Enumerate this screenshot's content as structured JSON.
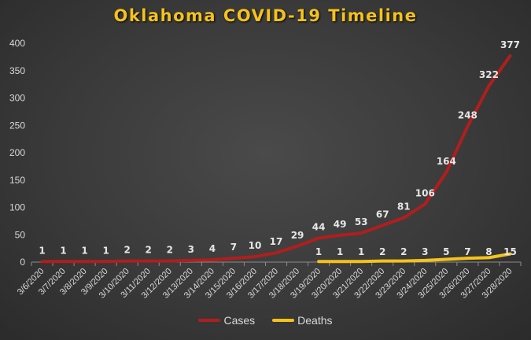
{
  "chart_data": {
    "type": "line",
    "title": "Oklahoma COVID-19 Timeline",
    "categories": [
      "3/6/2020",
      "3/7/2020",
      "3/8/2020",
      "3/9/2020",
      "3/10/2020",
      "3/11/2020",
      "3/12/2020",
      "3/13/2020",
      "3/14/2020",
      "3/15/2020",
      "3/16/2020",
      "3/17/2020",
      "3/18/2020",
      "3/19/2020",
      "3/20/2020",
      "3/21/2020",
      "3/22/2020",
      "3/23/2020",
      "3/24/2020",
      "3/25/2020",
      "3/26/2020",
      "3/27/2020",
      "3/28/2020"
    ],
    "series": [
      {
        "name": "Cases",
        "color": "#b01e1e",
        "values": [
          1,
          1,
          1,
          1,
          2,
          2,
          2,
          3,
          4,
          7,
          10,
          17,
          29,
          44,
          49,
          53,
          67,
          81,
          106,
          164,
          248,
          322,
          377
        ]
      },
      {
        "name": "Deaths",
        "color": "#f5c21b",
        "values": [
          null,
          null,
          null,
          null,
          null,
          null,
          null,
          null,
          null,
          null,
          null,
          null,
          null,
          1,
          1,
          1,
          2,
          2,
          3,
          5,
          7,
          8,
          15
        ]
      }
    ],
    "ylim": [
      0,
      400
    ],
    "yticks": [
      0,
      50,
      100,
      150,
      200,
      250,
      300,
      350,
      400
    ],
    "legend": "bottom",
    "grid": false
  }
}
